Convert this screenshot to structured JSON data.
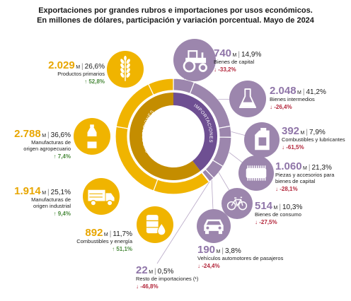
{
  "chart_data": {
    "type": "pie",
    "title": "Exportaciones por grandes rubros e importaciones por usos económicos.",
    "subtitle": "En millones de dólares, participación y variación porcentual. Mayo de 2024",
    "ring_labels": {
      "exports": "EXPORTACIONES",
      "imports": "IMPORTACIONES"
    },
    "unit": "M",
    "colors": {
      "exports": "#f0b400",
      "exports_dark": "#c48d00",
      "imports": "#9c86ad",
      "imports_dark": "#6e4f92",
      "up": "#4a8a3c",
      "down": "#b3263b"
    },
    "exports": [
      {
        "label": "Productos primarios",
        "value_text": "2.029",
        "value": 2029,
        "share": "26,6%",
        "change": "52,8%",
        "direction": "up",
        "icon": "wheat-icon"
      },
      {
        "label": "Manufacturas de origen agropecuario",
        "label_lines": [
          "Manufacturas de",
          "origen agropecuario"
        ],
        "value_text": "2.788",
        "value": 2788,
        "share": "36,6%",
        "change": "7,4%",
        "direction": "up",
        "icon": "bottle-icon"
      },
      {
        "label": "Manufacturas de origen industrial",
        "label_lines": [
          "Manufacturas de",
          "origen industrial"
        ],
        "value_text": "1.914",
        "value": 1914,
        "share": "25,1%",
        "change": "9,4%",
        "direction": "up",
        "icon": "truck-icon"
      },
      {
        "label": "Combustibles y energía",
        "value_text": "892",
        "value": 892,
        "share": "11,7%",
        "change": "51,1%",
        "direction": "up",
        "icon": "oil-barrel-icon"
      }
    ],
    "imports": [
      {
        "label": "Bienes de capital",
        "value_text": "740",
        "value": 740,
        "share": "14,9%",
        "change": "-33,2%",
        "direction": "down",
        "icon": "tractor-icon"
      },
      {
        "label": "Bienes intermedios",
        "value_text": "2.048",
        "value": 2048,
        "share": "41,2%",
        "change": "-26,4%",
        "direction": "down",
        "icon": "flask-icon"
      },
      {
        "label": "Combustibles y lubricantes",
        "value_text": "392",
        "value": 392,
        "share": "7,9%",
        "change": "-61,5%",
        "direction": "down",
        "icon": "fuel-can-icon"
      },
      {
        "label": "Piezas y accesorios para bienes de capital",
        "label_lines": [
          "Piezas y accesorios para",
          "bienes de capital"
        ],
        "value_text": "1.060",
        "value": 1060,
        "share": "21,3%",
        "change": "-28,1%",
        "direction": "down",
        "icon": "gear-part-icon"
      },
      {
        "label": "Bienes de consumo",
        "value_text": "514",
        "value": 514,
        "share": "10,3%",
        "change": "-27,5%",
        "direction": "down",
        "icon": "bicycle-icon"
      },
      {
        "label": "Vehículos automotores de pasajeros",
        "value_text": "190",
        "value": 190,
        "share": "3,8%",
        "change": "-24,4%",
        "direction": "down",
        "icon": "car-icon"
      },
      {
        "label": "Resto de importaciones (¹)",
        "value_text": "22",
        "value": 22,
        "share": "0,5%",
        "change": "-46,8%",
        "direction": "down",
        "icon": ""
      }
    ]
  }
}
